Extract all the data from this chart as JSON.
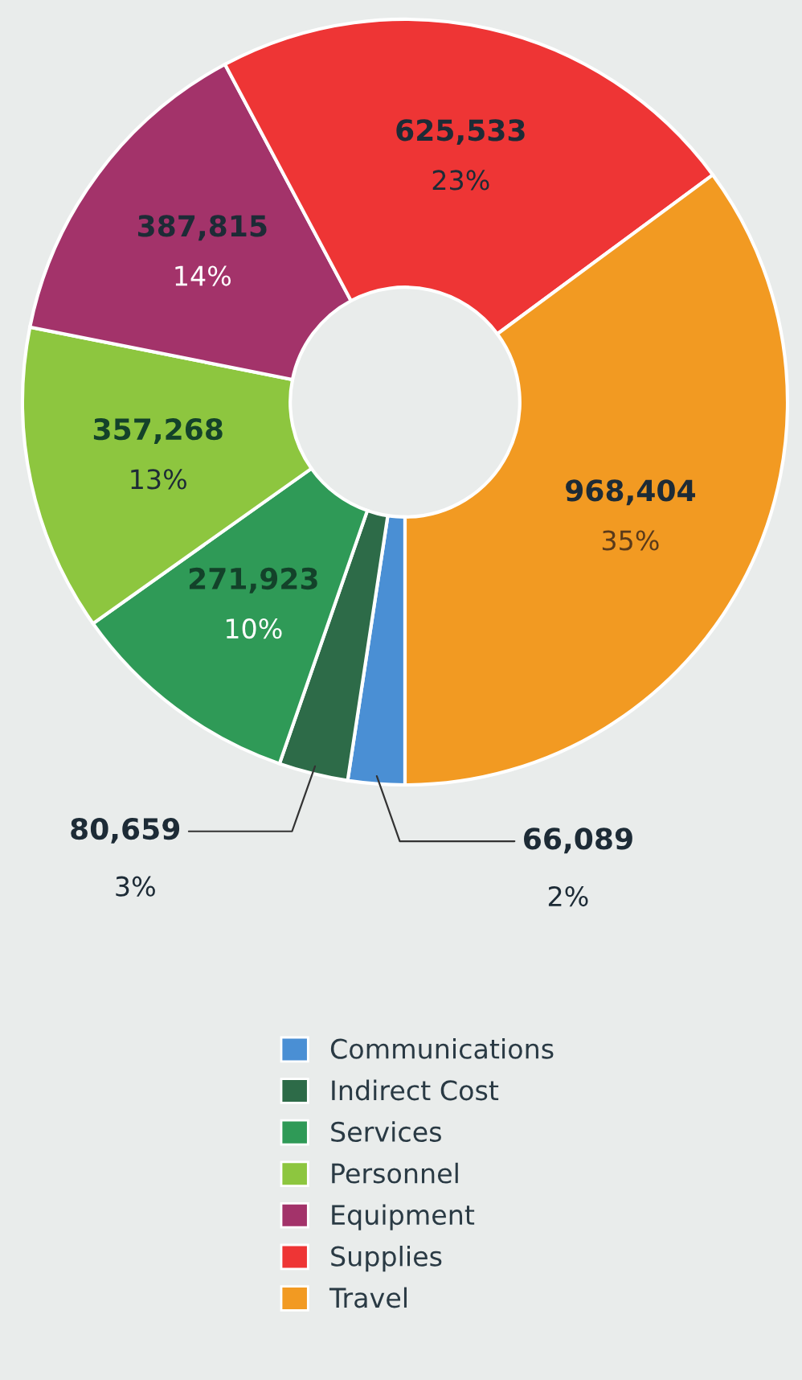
{
  "chart_data": {
    "type": "donut",
    "categories": [
      "Communications",
      "Indirect Cost",
      "Services",
      "Personnel",
      "Equipment",
      "Supplies",
      "Travel"
    ],
    "values": [
      66089,
      80659,
      271923,
      357268,
      387815,
      625533,
      968404
    ],
    "value_labels": [
      "66,089\n2%",
      "80,659\n3%",
      "271,923\n10%",
      "357,268\n13%",
      "387,815\n14%",
      "625,533\n23%",
      "968,404\n35%"
    ],
    "colors": [
      "#4a8fd4",
      "#2d6b48",
      "#2f9a57",
      "#8dc63f",
      "#a3336a",
      "#ee3535",
      "#f29a22"
    ],
    "legend": "bottom"
  }
}
